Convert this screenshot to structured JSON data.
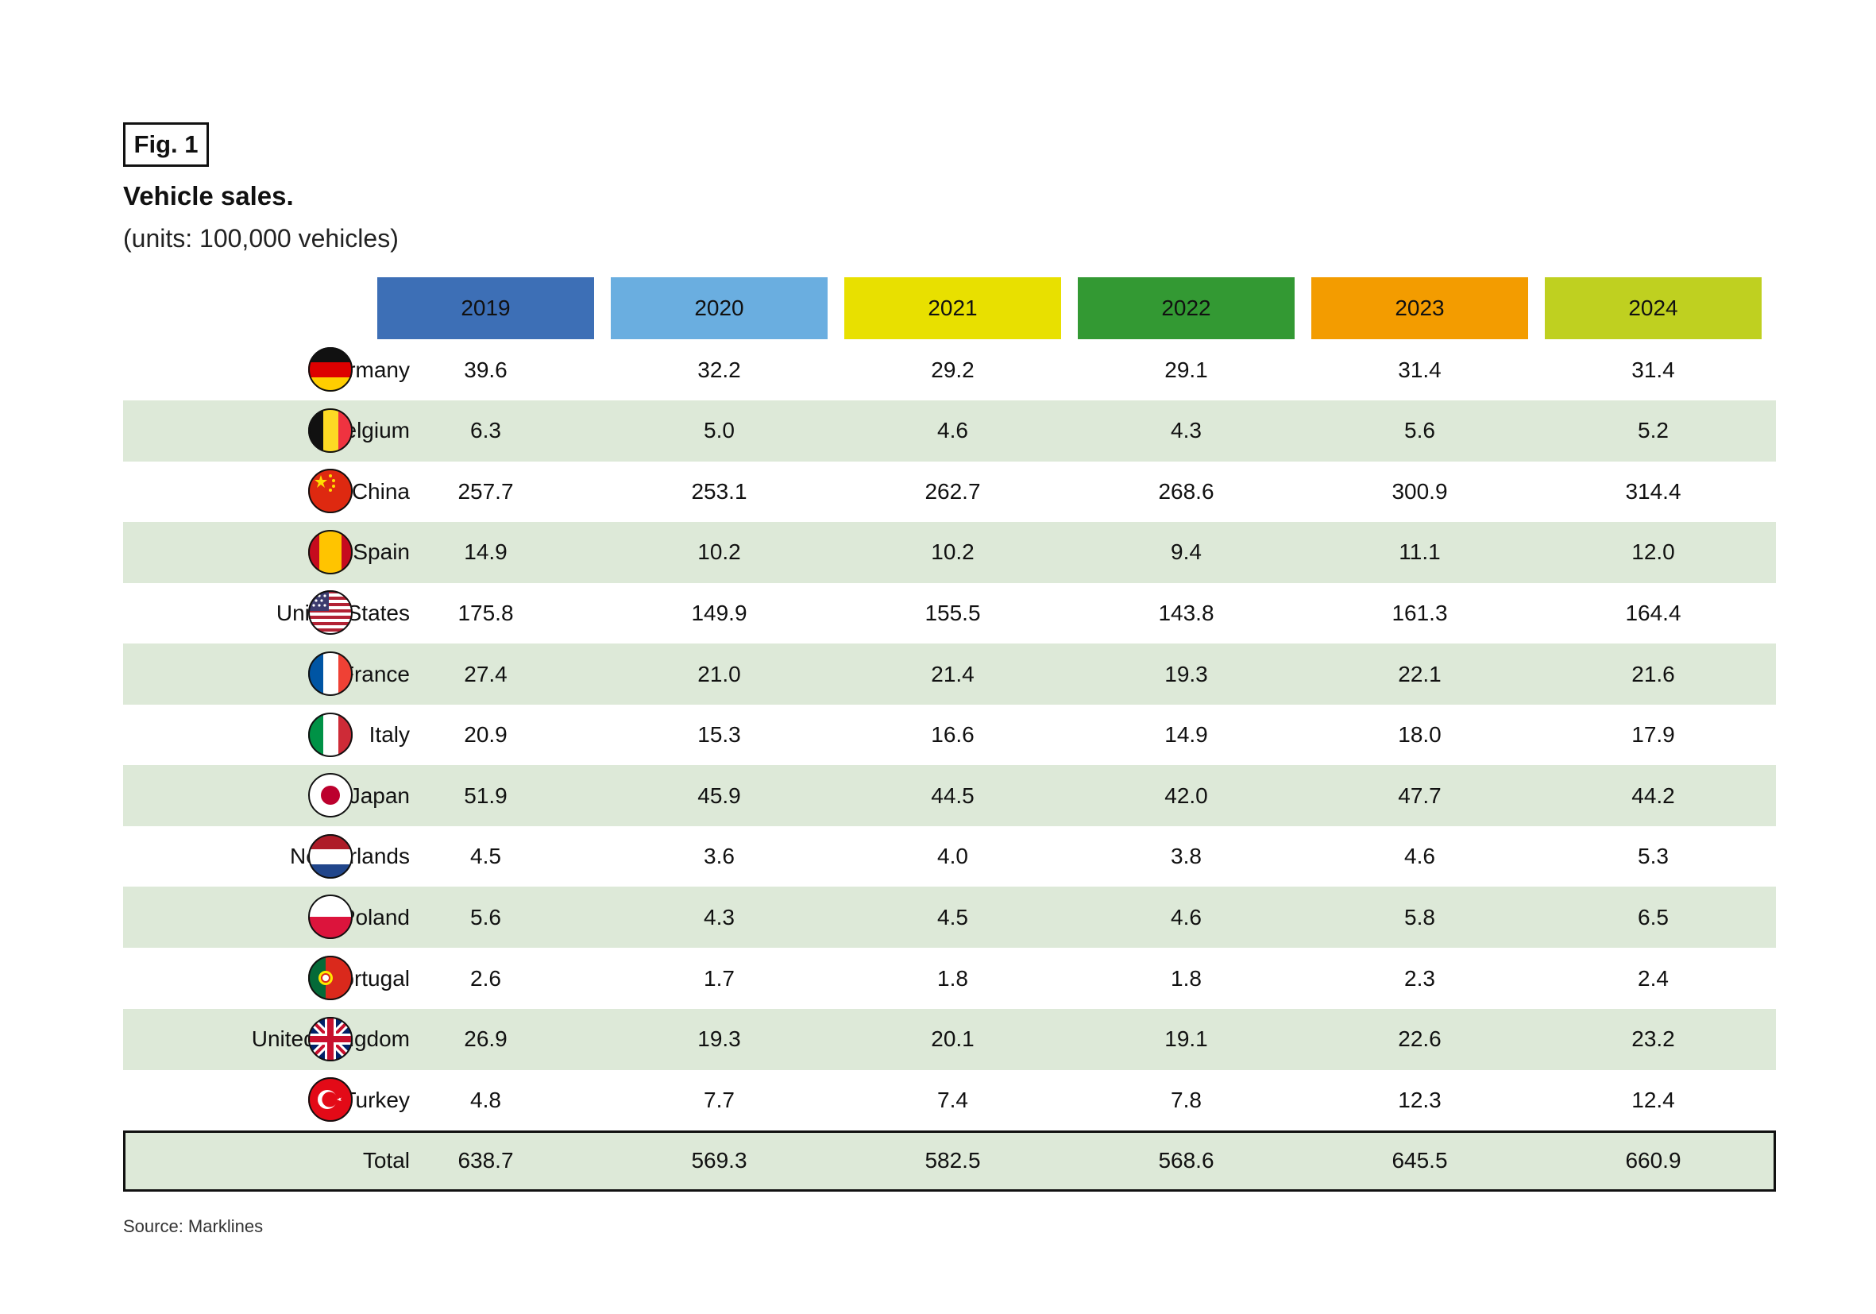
{
  "figure_label": "Fig. 1",
  "title": "Vehicle sales.",
  "subtitle": "(units: 100,000 vehicles)",
  "source": "Source: Marklines",
  "colors": {
    "header_2019": "#3d6fb6",
    "header_2020": "#6aaee0",
    "header_2021": "#e8e000",
    "header_2022": "#339933",
    "header_2023": "#f39c00",
    "header_2024": "#bfd020",
    "row_shade": "#dde9d8"
  },
  "chart_data": {
    "type": "table",
    "columns": [
      "2019",
      "2020",
      "2021",
      "2022",
      "2023",
      "2024"
    ],
    "rows": [
      {
        "country": "Germany",
        "flag": "germany-flag",
        "values": [
          "39.6",
          "32.2",
          "29.2",
          "29.1",
          "31.4",
          "31.4"
        ]
      },
      {
        "country": "Belgium",
        "flag": "belgium-flag",
        "values": [
          "6.3",
          "5.0",
          "4.6",
          "4.3",
          "5.6",
          "5.2"
        ]
      },
      {
        "country": "China",
        "flag": "china-flag",
        "values": [
          "257.7",
          "253.1",
          "262.7",
          "268.6",
          "300.9",
          "314.4"
        ]
      },
      {
        "country": "Spain",
        "flag": "spain-flag",
        "values": [
          "14.9",
          "10.2",
          "10.2",
          "9.4",
          "11.1",
          "12.0"
        ]
      },
      {
        "country": "United States",
        "flag": "usa-flag",
        "values": [
          "175.8",
          "149.9",
          "155.5",
          "143.8",
          "161.3",
          "164.4"
        ]
      },
      {
        "country": "France",
        "flag": "france-flag",
        "values": [
          "27.4",
          "21.0",
          "21.4",
          "19.3",
          "22.1",
          "21.6"
        ]
      },
      {
        "country": "Italy",
        "flag": "italy-flag",
        "values": [
          "20.9",
          "15.3",
          "16.6",
          "14.9",
          "18.0",
          "17.9"
        ]
      },
      {
        "country": "Japan",
        "flag": "japan-flag",
        "values": [
          "51.9",
          "45.9",
          "44.5",
          "42.0",
          "47.7",
          "44.2"
        ]
      },
      {
        "country": "Netherlands",
        "flag": "netherlands-flag",
        "values": [
          "4.5",
          "3.6",
          "4.0",
          "3.8",
          "4.6",
          "5.3"
        ]
      },
      {
        "country": "Poland",
        "flag": "poland-flag",
        "values": [
          "5.6",
          "4.3",
          "4.5",
          "4.6",
          "5.8",
          "6.5"
        ]
      },
      {
        "country": "Portugal",
        "flag": "portugal-flag",
        "values": [
          "2.6",
          "1.7",
          "1.8",
          "1.8",
          "2.3",
          "2.4"
        ]
      },
      {
        "country": "United Kingdom",
        "flag": "uk-flag",
        "values": [
          "26.9",
          "19.3",
          "20.1",
          "19.1",
          "22.6",
          "23.2"
        ]
      },
      {
        "country": "Turkey",
        "flag": "turkey-flag",
        "values": [
          "4.8",
          "7.7",
          "7.4",
          "7.8",
          "12.3",
          "12.4"
        ]
      }
    ],
    "total": {
      "label": "Total",
      "values": [
        "638.7",
        "569.3",
        "582.5",
        "568.6",
        "645.5",
        "660.9"
      ]
    }
  }
}
